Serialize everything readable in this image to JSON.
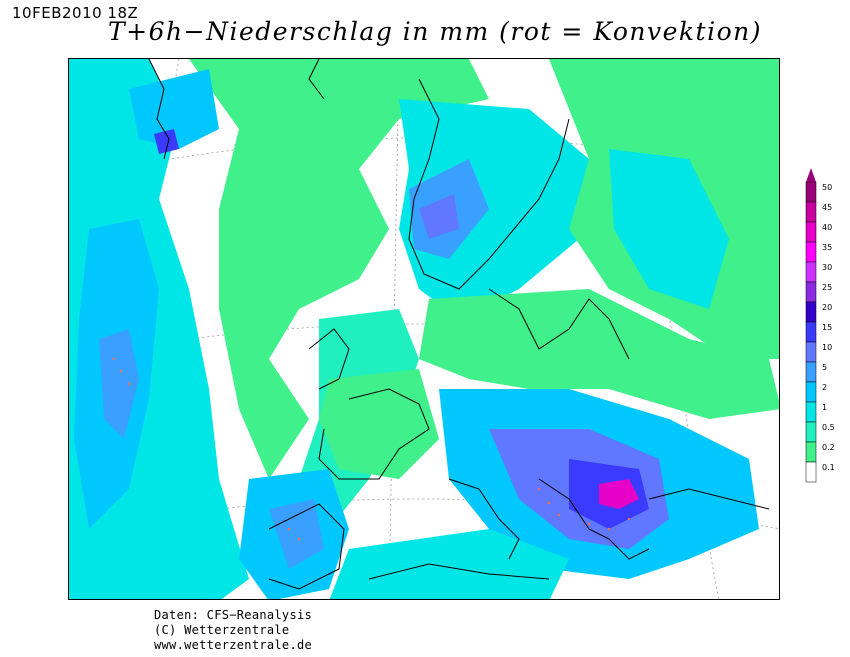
{
  "header": {
    "datetime": "10FEB2010 18Z",
    "title": "T+6h−Niederschlag in mm (rot = Konvektion)"
  },
  "legend": {
    "levels": [
      "50",
      "45",
      "40",
      "35",
      "30",
      "25",
      "20",
      "15",
      "10",
      "5",
      "2",
      "1",
      "0.5",
      "0.2",
      "0.1"
    ],
    "colors": [
      "#9a0078",
      "#c800a0",
      "#e600c8",
      "#ff00ff",
      "#cc33ff",
      "#8a2be2",
      "#3300cc",
      "#3b3bff",
      "#5f78ff",
      "#3aa0ff",
      "#00c8ff",
      "#00e6e6",
      "#20f0c0",
      "#40f08a",
      "#ffffff"
    ]
  },
  "map": {
    "region": "Europe and North Atlantic",
    "colors": {
      "light_precip": "#40f08a",
      "low_precip": "#20f0c0",
      "moderate_precip": "#00e6e6",
      "medium_precip": "#00c8ff",
      "heavier_precip": "#3aa0ff",
      "heavy_precip": "#5f78ff",
      "very_heavy_precip": "#3b3bff",
      "extreme_precip": "#e600c8",
      "convection_marks": "#ff6a4a",
      "coastline": "#000000",
      "graticule": "#9a9a9a"
    }
  },
  "credits": {
    "line1": "Daten: CFS−Reanalysis",
    "line2": "(C) Wetterzentrale",
    "line3": "www.wetterzentrale.de"
  }
}
